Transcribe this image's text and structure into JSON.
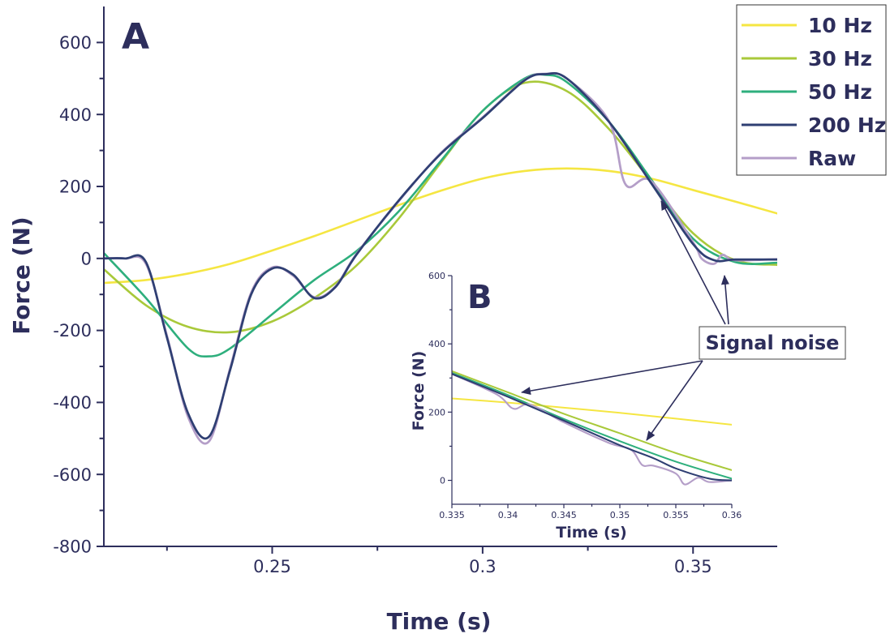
{
  "chart_data": [
    {
      "panel": "A",
      "type": "line",
      "xlabel": "Time (s)",
      "ylabel": "Force (N)",
      "xlim": [
        0.21,
        0.37
      ],
      "ylim": [
        -800,
        700
      ],
      "xticks": [
        0.25,
        0.3,
        0.35
      ],
      "xtick_labels": [
        "0.25",
        "0.3",
        "0.35"
      ],
      "yticks": [
        -800,
        -600,
        -400,
        -200,
        0,
        200,
        400,
        600
      ],
      "ytick_labels": [
        "-800",
        "-600",
        "-400",
        "-200",
        "0",
        "200",
        "400",
        "600"
      ],
      "grid": false,
      "legend_position": "top-right",
      "series": [
        {
          "name": "10 Hz",
          "color": "#f5e642",
          "x": [
            0.21,
            0.22,
            0.23,
            0.24,
            0.25,
            0.26,
            0.27,
            0.28,
            0.29,
            0.3,
            0.31,
            0.32,
            0.33,
            0.34,
            0.35,
            0.36,
            0.37
          ],
          "y": [
            -68,
            -60,
            -42,
            -15,
            22,
            62,
            105,
            148,
            188,
            222,
            243,
            250,
            243,
            222,
            190,
            158,
            125
          ]
        },
        {
          "name": "30 Hz",
          "color": "#a9c93a",
          "x": [
            0.21,
            0.22,
            0.23,
            0.24,
            0.25,
            0.26,
            0.27,
            0.28,
            0.29,
            0.3,
            0.31,
            0.32,
            0.33,
            0.34,
            0.35,
            0.36,
            0.37
          ],
          "y": [
            -30,
            -130,
            -190,
            -205,
            -175,
            -110,
            -20,
            110,
            265,
            410,
            488,
            465,
            360,
            215,
            70,
            -5,
            -18
          ]
        },
        {
          "name": "50 Hz",
          "color": "#2eaf7d",
          "x": [
            0.21,
            0.22,
            0.23,
            0.235,
            0.24,
            0.25,
            0.26,
            0.27,
            0.28,
            0.29,
            0.3,
            0.31,
            0.315,
            0.32,
            0.33,
            0.34,
            0.35,
            0.36,
            0.37
          ],
          "y": [
            15,
            -110,
            -250,
            -272,
            -250,
            -155,
            -60,
            20,
            130,
            270,
            410,
            500,
            510,
            490,
            380,
            220,
            55,
            -10,
            -12
          ]
        },
        {
          "name": "200 Hz",
          "color": "#2f3f73",
          "x": [
            0.21,
            0.215,
            0.22,
            0.225,
            0.23,
            0.235,
            0.24,
            0.245,
            0.25,
            0.255,
            0.26,
            0.265,
            0.27,
            0.28,
            0.29,
            0.3,
            0.31,
            0.315,
            0.32,
            0.33,
            0.34,
            0.35,
            0.355,
            0.36,
            0.37
          ],
          "y": [
            0,
            0,
            -10,
            -220,
            -430,
            -495,
            -310,
            -100,
            -28,
            -45,
            -110,
            -80,
            10,
            160,
            290,
            390,
            495,
            512,
            500,
            380,
            210,
            40,
            -5,
            -3,
            -3
          ]
        },
        {
          "name": "Raw",
          "color": "#b49ec8",
          "x": [
            0.21,
            0.215,
            0.22,
            0.225,
            0.23,
            0.235,
            0.24,
            0.245,
            0.25,
            0.255,
            0.26,
            0.265,
            0.27,
            0.28,
            0.29,
            0.3,
            0.31,
            0.315,
            0.32,
            0.33,
            0.334,
            0.34,
            0.35,
            0.352,
            0.355,
            0.357,
            0.36,
            0.37
          ],
          "y": [
            0,
            0,
            -15,
            -215,
            -440,
            -508,
            -305,
            -95,
            -25,
            -48,
            -108,
            -78,
            12,
            158,
            292,
            392,
            496,
            513,
            500,
            382,
            205,
            215,
            45,
            0,
            -15,
            10,
            -5,
            -2
          ]
        }
      ],
      "annotations": [
        {
          "text": "Signal noise"
        }
      ]
    },
    {
      "panel": "B",
      "type": "line",
      "xlabel": "Time (s)",
      "ylabel": "Force (N)",
      "xlim": [
        0.335,
        0.36
      ],
      "ylim": [
        -70,
        600
      ],
      "xticks": [
        0.335,
        0.34,
        0.345,
        0.35,
        0.355,
        0.36
      ],
      "xtick_labels": [
        "0.335",
        "0.34",
        "0.345",
        "0.35",
        "0.355",
        "0.36"
      ],
      "yticks": [
        0,
        200,
        400,
        600
      ],
      "ytick_labels": [
        "0",
        "200",
        "400",
        "600"
      ],
      "grid": false,
      "series": [
        {
          "name": "10 Hz",
          "color": "#f5e642",
          "x": [
            0.335,
            0.34,
            0.345,
            0.35,
            0.355,
            0.36
          ],
          "y": [
            240,
            228,
            213,
            198,
            181,
            163
          ]
        },
        {
          "name": "30 Hz",
          "color": "#a9c93a",
          "x": [
            0.335,
            0.34,
            0.345,
            0.35,
            0.355,
            0.36
          ],
          "y": [
            320,
            258,
            195,
            138,
            80,
            30
          ]
        },
        {
          "name": "50 Hz",
          "color": "#2eaf7d",
          "x": [
            0.335,
            0.34,
            0.345,
            0.35,
            0.355,
            0.36
          ],
          "y": [
            315,
            250,
            180,
            115,
            55,
            5
          ]
        },
        {
          "name": "200 Hz",
          "color": "#2f3f73",
          "x": [
            0.335,
            0.34,
            0.345,
            0.35,
            0.353,
            0.355,
            0.358,
            0.36
          ],
          "y": [
            312,
            245,
            175,
            103,
            65,
            35,
            5,
            0
          ]
        },
        {
          "name": "Raw",
          "color": "#b49ec8",
          "x": [
            0.335,
            0.339,
            0.3405,
            0.342,
            0.345,
            0.349,
            0.351,
            0.352,
            0.353,
            0.355,
            0.3558,
            0.357,
            0.358,
            0.36
          ],
          "y": [
            312,
            252,
            210,
            222,
            170,
            110,
            90,
            45,
            43,
            20,
            -12,
            8,
            -5,
            0
          ]
        }
      ]
    }
  ]
}
